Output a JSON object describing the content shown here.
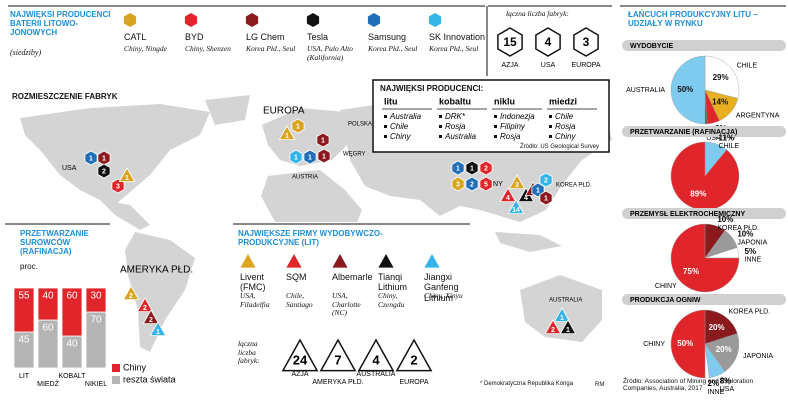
{
  "header": {
    "title": "NAJWIĘKSI PRODUCENCI BATERII LITOWO-JONOWYCH",
    "subtitle": "(siedziby)"
  },
  "battery_producers": [
    {
      "name": "CATL",
      "location": "Chiny, Ningde",
      "color": "#d9a521"
    },
    {
      "name": "BYD",
      "location": "Chiny, Shenzen",
      "color": "#e0262b"
    },
    {
      "name": "LG Chem",
      "location": "Korea Płd., Seul",
      "color": "#8b1a1f"
    },
    {
      "name": "Tesla",
      "location": "USA, Palo Alto (Kalifornia)",
      "color": "#111111"
    },
    {
      "name": "Samsung",
      "location": "Korea Płd., Seul",
      "color": "#1f6fb8"
    },
    {
      "name": "SK Innovation",
      "location": "Korea Płd., Seul",
      "color": "#35b4ea"
    }
  ],
  "battery_factories": {
    "label": "łączna liczba fabryk:",
    "items": [
      {
        "value": 15,
        "region": "AZJA"
      },
      {
        "value": 4,
        "region": "USA"
      },
      {
        "value": 3,
        "region": "EUROPA"
      }
    ]
  },
  "map": {
    "title": "ROZMIESZCZENIE FABRYK",
    "regions": [
      "USA",
      "EUROPA",
      "POLSKA",
      "WĘGRY",
      "AUSTRIA",
      "CHINY",
      "KOREA PŁD.",
      "AMERYKA PŁD.",
      "AUSTRALIA"
    ],
    "markers": [
      {
        "text": "1",
        "color": "#1f6fb8",
        "shape": "hex"
      },
      {
        "text": "1",
        "color": "#8b1a1f",
        "shape": "hex"
      },
      {
        "text": "2",
        "color": "#111111",
        "shape": "hex"
      },
      {
        "text": "3",
        "color": "#e0262b",
        "shape": "hex"
      },
      {
        "text": "1",
        "color": "#d9a521",
        "shape": "tri"
      },
      {
        "text": "1",
        "color": "#d9a521",
        "shape": "tri"
      },
      {
        "text": "1",
        "color": "#d9a521",
        "shape": "hex"
      },
      {
        "text": "1",
        "color": "#8b1a1f",
        "shape": "hex"
      },
      {
        "text": "1",
        "color": "#8b1a1f",
        "shape": "hex"
      },
      {
        "text": "1",
        "color": "#1f6fb8",
        "shape": "hex"
      },
      {
        "text": "1",
        "color": "#35b4ea",
        "shape": "hex"
      },
      {
        "text": "1",
        "color": "#1f6fb8",
        "shape": "hex"
      },
      {
        "text": "1",
        "color": "#111111",
        "shape": "hex"
      },
      {
        "text": "2",
        "color": "#e0262b",
        "shape": "hex"
      },
      {
        "text": "3",
        "color": "#d9a521",
        "shape": "hex"
      },
      {
        "text": "2",
        "color": "#1f6fb8",
        "shape": "hex"
      },
      {
        "text": "5",
        "color": "#e0262b",
        "shape": "hex"
      },
      {
        "text": "3",
        "color": "#d9a521",
        "shape": "tri"
      },
      {
        "text": "4",
        "color": "#111111",
        "shape": "tri"
      },
      {
        "text": "4",
        "color": "#e0262b",
        "shape": "tri"
      },
      {
        "text": "14",
        "color": "#35b4ea",
        "shape": "tri"
      },
      {
        "text": "2",
        "color": "#8b1a1f",
        "shape": "tri"
      },
      {
        "text": "2",
        "color": "#35b4ea",
        "shape": "hex"
      },
      {
        "text": "1",
        "color": "#1f6fb8",
        "shape": "hex"
      },
      {
        "text": "1",
        "color": "#8b1a1f",
        "shape": "hex"
      },
      {
        "text": "2",
        "color": "#d9a521",
        "shape": "tri"
      },
      {
        "text": "2",
        "color": "#e0262b",
        "shape": "tri"
      },
      {
        "text": "2",
        "color": "#8b1a1f",
        "shape": "tri"
      },
      {
        "text": "1",
        "color": "#35b4ea",
        "shape": "tri"
      },
      {
        "text": "1",
        "color": "#35b4ea",
        "shape": "tri"
      },
      {
        "text": "2",
        "color": "#e0262b",
        "shape": "tri"
      },
      {
        "text": "1",
        "color": "#111111",
        "shape": "tri"
      }
    ]
  },
  "top_producers": {
    "title": "NAJWIĘKSI PRODUCENCI:",
    "columns": [
      {
        "name": "litu",
        "items": [
          "Australia",
          "Chile",
          "Chiny"
        ]
      },
      {
        "name": "kobaltu",
        "items": [
          "DRK*",
          "Rosja",
          "Australia"
        ]
      },
      {
        "name": "niklu",
        "items": [
          "Indonezja",
          "Filipiny",
          "Rosja"
        ]
      },
      {
        "name": "miedzi",
        "items": [
          "Chile",
          "Rosja",
          "Chiny"
        ]
      }
    ],
    "source": "Źródło: US Geological Survey"
  },
  "mining_companies": {
    "title": "NAJWIĘKSZE FIRMY WYDOBYWCZO-PRODUKCYJNE (LIT)",
    "items": [
      {
        "name": "Livent (FMC)",
        "location": "USA, Filadelfia",
        "color": "#d9a521"
      },
      {
        "name": "SQM",
        "location": "Chile, Santiago",
        "color": "#e0262b"
      },
      {
        "name": "Albemarle",
        "location": "USA, Charlotte (NC)",
        "color": "#8b1a1f"
      },
      {
        "name": "Tianqi Lithium",
        "location": "Chiny, Czengdu",
        "color": "#111111"
      },
      {
        "name": "Jiangxi Ganfeng Lithium",
        "location": "Chiny, Xinyu",
        "color": "#35b4ea"
      }
    ],
    "factories_label": "łączna liczba fabryk:",
    "factories": [
      {
        "value": 24,
        "region": "AZJA"
      },
      {
        "value": 7,
        "region": "AMERYKA PŁD."
      },
      {
        "value": 4,
        "region": "AUSTRALIA"
      },
      {
        "value": 2,
        "region": "EUROPA"
      }
    ]
  },
  "chain": {
    "title": "ŁAŃCUCH PRODUKCYJNY LITU – UDZIAŁY W RYNKU",
    "source": "Źródło: Association of Mining and Exploration Companies, Australia, 2017"
  },
  "chart_data": [
    {
      "type": "bar",
      "stacked": true,
      "title": "PRZETWARZANIE SUROWCÓW (RAFINACJA)",
      "subtitle": "proc.",
      "categories": [
        "LIT",
        "MIEDŹ",
        "KOBALT",
        "NIKIEL"
      ],
      "series": [
        {
          "name": "reszta świata",
          "color": "#b5b5b5",
          "values": [
            45,
            60,
            40,
            70
          ]
        },
        {
          "name": "Chiny",
          "color": "#e0262b",
          "values": [
            55,
            40,
            60,
            30
          ]
        }
      ],
      "ylim": [
        0,
        100
      ]
    },
    {
      "type": "pie",
      "title": "WYDOBYCIE",
      "categories": [
        "CHILE",
        "ARGENTYNA",
        "CHINY",
        "USA",
        "AUSTRALIA"
      ],
      "values": [
        29,
        14,
        6,
        1,
        50
      ],
      "value_labels": [
        "29%",
        "14%",
        "6%",
        "1%",
        "50%"
      ],
      "colors": [
        "#ffffff",
        "#e8b020",
        "#e0262b",
        "#555555",
        "#7fcbef"
      ]
    },
    {
      "type": "pie",
      "title": "PRZETWARZANIE (RAFINACJA)",
      "categories": [
        "CHILE",
        "CHINY"
      ],
      "values": [
        11,
        89
      ],
      "value_labels": [
        "11%",
        "89%"
      ],
      "colors": [
        "#7fcbef",
        "#e0262b"
      ]
    },
    {
      "type": "pie",
      "title": "PRZEMYSŁ ELEKTROCHEMICZNY",
      "categories": [
        "KOREA PŁD.",
        "JAPONIA",
        "INNE",
        "CHINY"
      ],
      "values": [
        10,
        10,
        5,
        75
      ],
      "value_labels": [
        "10%",
        "10%",
        "5%",
        "75%"
      ],
      "colors": [
        "#8b1a1f",
        "#9a9a9a",
        "#ffffff",
        "#e0262b"
      ]
    },
    {
      "type": "pie",
      "title": "PRODUKCJA OGNIW",
      "categories": [
        "KOREA PŁD.",
        "JAPONIA",
        "USA",
        "INNE",
        "CHINY"
      ],
      "values": [
        20,
        20,
        8,
        2,
        50
      ],
      "value_labels": [
        "20%",
        "20%",
        "8%",
        "2%",
        "50%"
      ],
      "colors": [
        "#8b1a1f",
        "#9a9a9a",
        "#7fcbef",
        "#ffffff",
        "#e0262b"
      ]
    }
  ],
  "footnote": "* Demokratyczna Republika Konga",
  "credit": "RM"
}
